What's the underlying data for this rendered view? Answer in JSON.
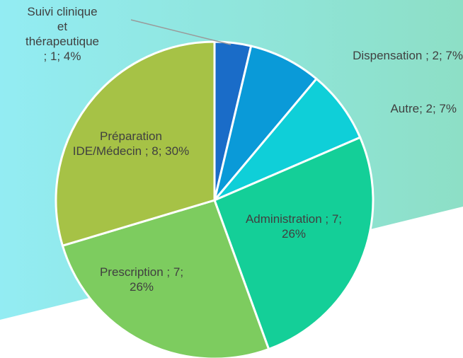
{
  "chart_data": {
    "type": "pie",
    "values": [
      1,
      2,
      2,
      7,
      7,
      8
    ],
    "value_labels": [
      "Suivi clinique et thérapeutique ; 1; 4%",
      "Dispensation ; 2; 7%",
      "Autre; 2; 7%",
      "Administration ; 7; 26%",
      "Prescription ; 7; 26%",
      "Préparation IDE/Médecin ; 8; 30%"
    ],
    "colors": [
      "#1a6cc8",
      "#0a9ad8",
      "#0fcfd8",
      "#14cf98",
      "#7dcc5f",
      "#a6c246"
    ]
  }
}
